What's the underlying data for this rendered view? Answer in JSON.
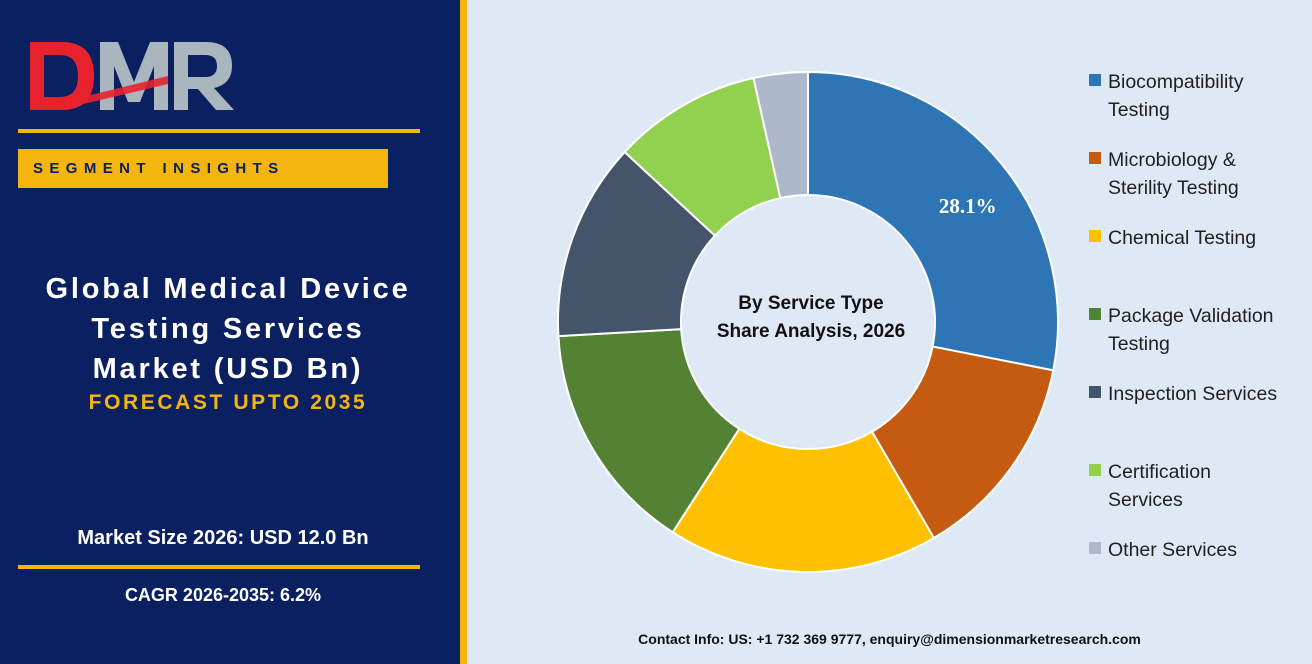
{
  "brand": {
    "logo_text": "DMR",
    "segment_label": "SEGMENT INSIGHTS"
  },
  "report": {
    "title_lines": [
      "Global Medical Device",
      "Testing Services",
      "Market (USD Bn)"
    ],
    "forecast": "FORECAST UPTO 2035",
    "market_size": "Market Size 2026: USD 12.0 Bn",
    "cagr": "CAGR 2026-2035: 6.2%"
  },
  "chart_data": {
    "type": "pie",
    "center_label": [
      "By Service Type",
      "Share Analysis, 2026"
    ],
    "series": [
      {
        "name": "Biocompatibility Testing",
        "label_lines": [
          "Biocompatibility",
          "Testing"
        ],
        "value": 28.1,
        "color": "#2e75b6",
        "data_label": "28.1%"
      },
      {
        "name": "Microbiology & Sterility Testing",
        "label_lines": [
          "Microbiology &",
          "Sterility Testing"
        ],
        "value": 13.5,
        "color": "#c55a11"
      },
      {
        "name": "Chemical Testing",
        "label_lines": [
          "Chemical Testing"
        ],
        "value": 17.5,
        "color": "#ffc000"
      },
      {
        "name": "Package Validation Testing",
        "label_lines": [
          "Package Validation",
          "Testing"
        ],
        "value": 15.0,
        "color": "#548235"
      },
      {
        "name": "Inspection Services",
        "label_lines": [
          "Inspection Services"
        ],
        "value": 12.8,
        "color": "#44546a"
      },
      {
        "name": "Certification Services",
        "label_lines": [
          "Certification",
          "Services"
        ],
        "value": 9.6,
        "color": "#92d050"
      },
      {
        "name": "Other Services",
        "label_lines": [
          "Other Services"
        ],
        "value": 3.5,
        "color": "#adb9ca"
      }
    ],
    "legend_position": "right"
  },
  "footer": {
    "contact": "Contact Info: US: +1 732 369 9777, enquiry@dimensionmarketresearch.com"
  },
  "colors": {
    "navy": "#0b2060",
    "gold": "#f5b50f",
    "chart_background": "#dfe9f5"
  }
}
